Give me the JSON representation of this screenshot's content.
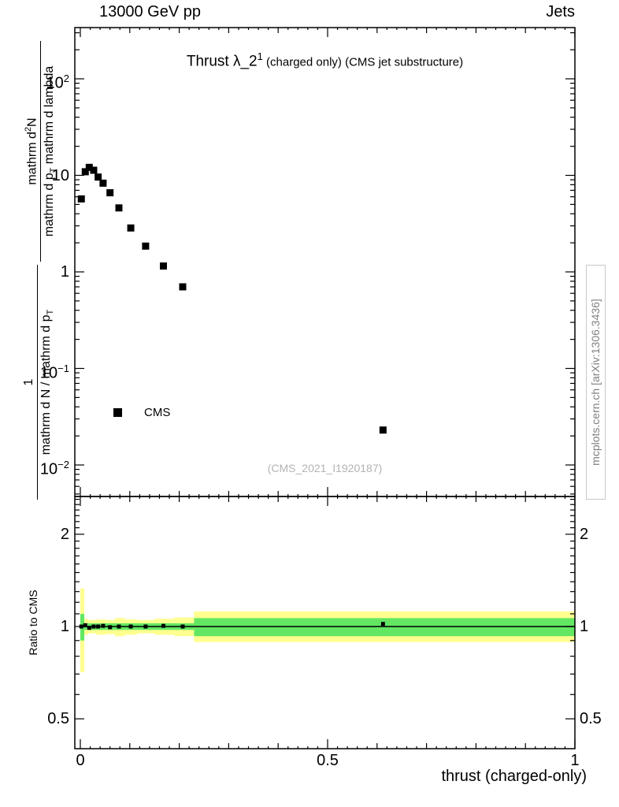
{
  "header": {
    "left": "13000 GeV pp",
    "right": "Jets"
  },
  "title": {
    "prefix": "Thrust λ_2",
    "sup": "1",
    "suffix": " (charged only) (CMS jet substructure)"
  },
  "legend": {
    "label": "CMS"
  },
  "watermark": "(CMS_2021_I1920187)",
  "side_note": "mcplots.cern.ch [arXiv:1306.3436]",
  "y_axis_label": {
    "top_frac": {
      "num_a": "mathrm d",
      "num_sup": "2",
      "num_b": "N",
      "den_a": "mathrm d p",
      "den_sub": "T",
      "den_b": " mathrm d lambda"
    },
    "bottom_frac": {
      "num": "1",
      "den_a": "mathrm d N / mathrm d p",
      "den_sub": "T"
    }
  },
  "ratio_axis_label": "Ratio to CMS",
  "x_axis_label": "thrust (charged-only)",
  "chart_data": {
    "type": "scatter",
    "title": "Thrust λ_2^1 (charged only) (CMS jet substructure)",
    "xlabel": "thrust (charged-only)",
    "ylabel": "1/(dN/dp_T) · d²N/(dp_T dλ)",
    "xlim": [
      0,
      1
    ],
    "grid": false,
    "main_panel": {
      "ylog": true,
      "ylim": [
        0.005,
        330
      ],
      "yticks": [
        {
          "v": 100,
          "base": "10",
          "exp": "2"
        },
        {
          "v": 10,
          "base": "10",
          "exp": ""
        },
        {
          "v": 1,
          "base": "1",
          "exp": ""
        },
        {
          "v": 0.1,
          "base": "10",
          "exp": "−1"
        },
        {
          "v": 0.01,
          "base": "10",
          "exp": "−2"
        }
      ],
      "series": [
        {
          "name": "CMS",
          "marker": "square",
          "color": "#000000",
          "x": [
            0.002,
            0.01,
            0.018,
            0.027,
            0.036,
            0.046,
            0.06,
            0.078,
            0.102,
            0.132,
            0.168,
            0.207,
            0.612
          ],
          "y": [
            5.7,
            10.9,
            12.1,
            11.3,
            9.6,
            8.3,
            6.6,
            4.6,
            2.85,
            1.85,
            1.15,
            0.7,
            0.023
          ]
        }
      ]
    },
    "xticks": [
      {
        "v": 0,
        "label": "0"
      },
      {
        "v": 0.5,
        "label": "0.5"
      },
      {
        "v": 1,
        "label": "1"
      }
    ],
    "ratio_panel": {
      "ylog": true,
      "ylim": [
        0.4,
        2.66
      ],
      "yticks": [
        {
          "v": 2,
          "label": "2"
        },
        {
          "v": 1,
          "label": "1"
        },
        {
          "v": 0.5,
          "label": "0.5"
        }
      ],
      "unity_line": 1.0,
      "colors": {
        "yellow": "#ffff8f",
        "green": "#63e763"
      },
      "bands": {
        "yellow": [
          {
            "x0": 0.0,
            "x1": 0.008,
            "lo": 0.71,
            "hi": 1.33
          },
          {
            "x0": 0.008,
            "x1": 0.016,
            "lo": 0.94,
            "hi": 1.06
          },
          {
            "x0": 0.016,
            "x1": 0.032,
            "lo": 0.95,
            "hi": 1.05
          },
          {
            "x0": 0.032,
            "x1": 0.052,
            "lo": 0.94,
            "hi": 1.055
          },
          {
            "x0": 0.052,
            "x1": 0.07,
            "lo": 0.945,
            "hi": 1.05
          },
          {
            "x0": 0.07,
            "x1": 0.09,
            "lo": 0.93,
            "hi": 1.065
          },
          {
            "x0": 0.09,
            "x1": 0.115,
            "lo": 0.94,
            "hi": 1.055
          },
          {
            "x0": 0.115,
            "x1": 0.15,
            "lo": 0.95,
            "hi": 1.05
          },
          {
            "x0": 0.15,
            "x1": 0.19,
            "lo": 0.94,
            "hi": 1.06
          },
          {
            "x0": 0.19,
            "x1": 0.23,
            "lo": 0.93,
            "hi": 1.07
          },
          {
            "x0": 0.23,
            "x1": 1.0,
            "lo": 0.89,
            "hi": 1.12
          }
        ],
        "green": [
          {
            "x0": 0.0,
            "x1": 0.008,
            "lo": 0.9,
            "hi": 1.1
          },
          {
            "x0": 0.008,
            "x1": 0.23,
            "lo": 0.975,
            "hi": 1.025
          },
          {
            "x0": 0.23,
            "x1": 1.0,
            "lo": 0.93,
            "hi": 1.065
          }
        ]
      },
      "points": {
        "x": [
          0.002,
          0.01,
          0.018,
          0.027,
          0.036,
          0.046,
          0.06,
          0.078,
          0.102,
          0.132,
          0.168,
          0.207,
          0.612
        ],
        "y": [
          1.0,
          1.01,
          0.99,
          1.0,
          1.0,
          1.005,
          0.995,
          1.0,
          1.0,
          1.0,
          1.005,
          1.0,
          1.02
        ]
      }
    }
  }
}
